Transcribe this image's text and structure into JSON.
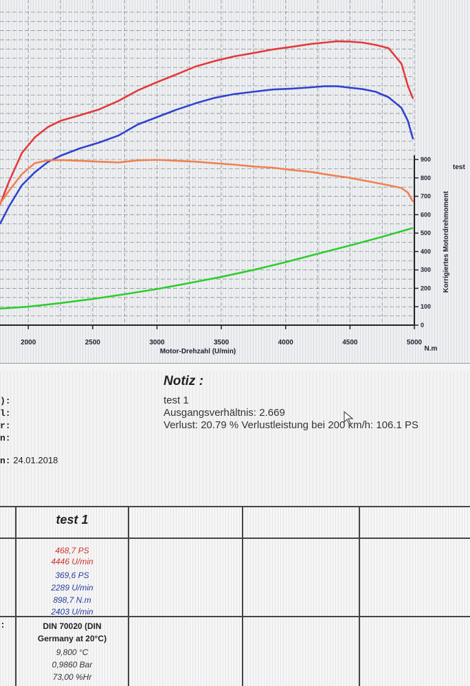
{
  "chart_data": {
    "type": "line",
    "xlabel": "Motor-Drehzahl (U/min)",
    "x_ticks": [
      "2000",
      "2500",
      "3000",
      "3500",
      "4000",
      "4500",
      "5000"
    ],
    "xlim": [
      1780,
      5000
    ],
    "y2label": "Korrigiertes Motordrehmoment",
    "y2_unit": "N.m",
    "y2_ticks": [
      "0",
      "100",
      "200",
      "300",
      "400",
      "500",
      "600",
      "700",
      "800",
      "900"
    ],
    "y2lim": [
      0,
      900
    ],
    "legend": [
      "test"
    ],
    "grid": true,
    "series": [
      {
        "color": "#e23a3a",
        "x": [
          1780,
          1850,
          1950,
          2050,
          2150,
          2250,
          2400,
          2550,
          2700,
          2850,
          3000,
          3150,
          3300,
          3450,
          3600,
          3750,
          3900,
          4050,
          4200,
          4300,
          4400,
          4500,
          4600,
          4700,
          4800,
          4900,
          4950,
          4990
        ],
        "y": [
          655,
          780,
          935,
          1020,
          1075,
          1110,
          1140,
          1172,
          1218,
          1275,
          1320,
          1362,
          1405,
          1435,
          1460,
          1478,
          1498,
          1512,
          1528,
          1535,
          1542,
          1540,
          1535,
          1522,
          1505,
          1420,
          1300,
          1230
        ]
      },
      {
        "color": "#2f43cc",
        "x": [
          1780,
          1850,
          1950,
          2050,
          2150,
          2250,
          2400,
          2550,
          2700,
          2850,
          3000,
          3150,
          3300,
          3450,
          3600,
          3750,
          3900,
          4050,
          4200,
          4300,
          4400,
          4500,
          4600,
          4700,
          4800,
          4900,
          4950,
          4990
        ],
        "y": [
          550,
          645,
          760,
          830,
          885,
          920,
          960,
          992,
          1030,
          1090,
          1130,
          1170,
          1205,
          1235,
          1255,
          1268,
          1280,
          1285,
          1292,
          1298,
          1298,
          1290,
          1282,
          1268,
          1238,
          1180,
          1110,
          1010
        ]
      },
      {
        "color": "#f08050",
        "x": [
          1780,
          1850,
          1950,
          2050,
          2150,
          2250,
          2400,
          2550,
          2700,
          2850,
          3000,
          3150,
          3300,
          3450,
          3600,
          3750,
          3900,
          4050,
          4200,
          4350,
          4500,
          4650,
          4800,
          4900,
          4950,
          4990
        ],
        "y": [
          660,
          730,
          820,
          880,
          895,
          897,
          893,
          888,
          884,
          895,
          898,
          893,
          888,
          880,
          872,
          862,
          855,
          843,
          832,
          815,
          800,
          780,
          760,
          745,
          720,
          670
        ]
      },
      {
        "color": "#2ecc2e",
        "x": [
          1780,
          2000,
          2250,
          2500,
          2750,
          3000,
          3250,
          3500,
          3750,
          4000,
          4250,
          4500,
          4750,
          4990
        ],
        "y": [
          90,
          100,
          120,
          142,
          168,
          196,
          228,
          262,
          300,
          342,
          388,
          433,
          480,
          528
        ]
      }
    ]
  },
  "info": {
    "stubs": [
      "):",
      "l:",
      "r:",
      "n:"
    ],
    "date_label": "n:",
    "date_value": "24.01.2018",
    "notiz_title": "Notiz :",
    "notiz_lines": [
      "test 1",
      "Ausgangsverhältnis: 2.669",
      "Verlust: 20.79 %  Verlustleistung bei 200 km/h:  106.1 PS"
    ]
  },
  "table": {
    "column_header": "test 1",
    "max_power": "468,7 PS",
    "max_power_rpm": "4446 U/min",
    "wheel_power": "369,6 PS",
    "wheel_power_rpm": "2289 U/min",
    "max_torque": "898,7 N.m",
    "max_torque_rpm": "2403 U/min",
    "norm_line1": "DIN 70020 (DIN",
    "norm_line2": "Germany at 20°C)",
    "temperature": "9,800 °C",
    "pressure": "0,9860 Bar",
    "humidity": "73,00 %Hr",
    "stub": ":"
  },
  "colors": {
    "power_red": "#e23a3a",
    "power_blue": "#2f43cc",
    "torque_orange": "#f08050",
    "loss_green": "#2ecc2e",
    "table_red_text": "#d03030",
    "table_blue_text": "#2a3ea0"
  },
  "icons": {
    "cursor": "mouse-pointer-icon"
  }
}
